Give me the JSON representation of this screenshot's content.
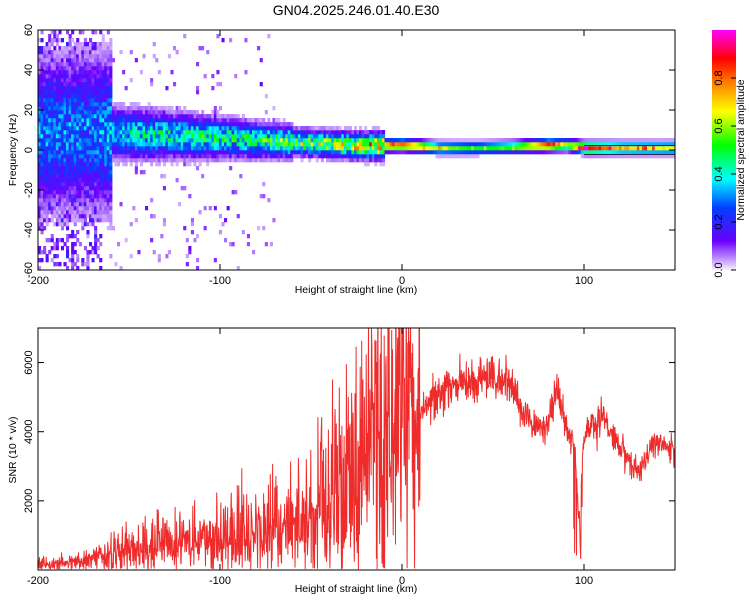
{
  "title": "GN04.2025.246.01.40.E30",
  "chart_data": [
    {
      "type": "heatmap",
      "xlabel": "Height of straight line (km)",
      "ylabel": "Frequency (Hz)",
      "xlim": [
        -200,
        150
      ],
      "ylim": [
        -60,
        60
      ],
      "xticks": [
        -200,
        -100,
        0,
        100
      ],
      "xtick_labels": [
        "-200",
        "-100",
        "0",
        "100"
      ],
      "yticks": [
        -60,
        -40,
        -20,
        0,
        20,
        40,
        60
      ],
      "ytick_labels": [
        "-60",
        "-40",
        "-20",
        "0",
        "20",
        "40",
        "60"
      ],
      "colorbar": {
        "label": "Normalized spectral amplitude",
        "range": [
          0,
          1
        ],
        "ticks": [
          0,
          0.2,
          0.4,
          0.6,
          0.8
        ],
        "tick_labels": [
          "0.0",
          "0.2",
          "0.4",
          "0.6",
          "0.8"
        ],
        "colormap": [
          "#f7f0fb",
          "#6a00ff",
          "#0040ff",
          "#00ffff",
          "#00ff00",
          "#ffff00",
          "#ff7f00",
          "#ff0000",
          "#ff00ff"
        ]
      },
      "ridge": {
        "x": [
          -170,
          -150,
          -120,
          -100,
          -80,
          -60,
          -40,
          -20,
          0,
          20,
          40,
          60,
          80,
          90,
          100,
          120,
          150
        ],
        "frequency": [
          8,
          7,
          6,
          5,
          4,
          3,
          2,
          1,
          1.5,
          0,
          0,
          0.5,
          1.5,
          1.5,
          0,
          0,
          0
        ],
        "amplitude": [
          0.3,
          0.4,
          0.45,
          0.45,
          0.45,
          0.55,
          0.6,
          0.7,
          0.85,
          0.6,
          0.5,
          0.55,
          0.9,
          0.6,
          0.9,
          0.7,
          0.65
        ]
      },
      "grid": false
    },
    {
      "type": "line",
      "xlabel": "Height of straight line (km)",
      "ylabel": "SNR (10 * v/v)",
      "xlim": [
        -200,
        150
      ],
      "ylim": [
        0,
        7000
      ],
      "xticks": [
        -200,
        -100,
        0,
        100
      ],
      "xtick_labels": [
        "-200",
        "-100",
        "0",
        "100"
      ],
      "yticks": [
        2000,
        4000,
        6000
      ],
      "ytick_labels": [
        "2000",
        "4000",
        "6000"
      ],
      "color": "#ee2c2c",
      "envelope": {
        "x": [
          -200,
          -170,
          -150,
          -130,
          -110,
          -90,
          -70,
          -50,
          -35,
          -20,
          -10,
          0,
          10,
          20,
          30,
          40,
          50,
          60,
          70,
          80,
          85,
          90,
          95,
          97,
          100,
          110,
          120,
          130,
          140,
          150
        ],
        "y": [
          150,
          250,
          600,
          700,
          800,
          950,
          1100,
          1500,
          2300,
          3200,
          3600,
          3900,
          4500,
          5200,
          5400,
          5500,
          5600,
          5300,
          4300,
          4100,
          5200,
          4100,
          3500,
          1500,
          3900,
          4400,
          3500,
          2800,
          3800,
          3300
        ]
      },
      "grid": false
    }
  ]
}
